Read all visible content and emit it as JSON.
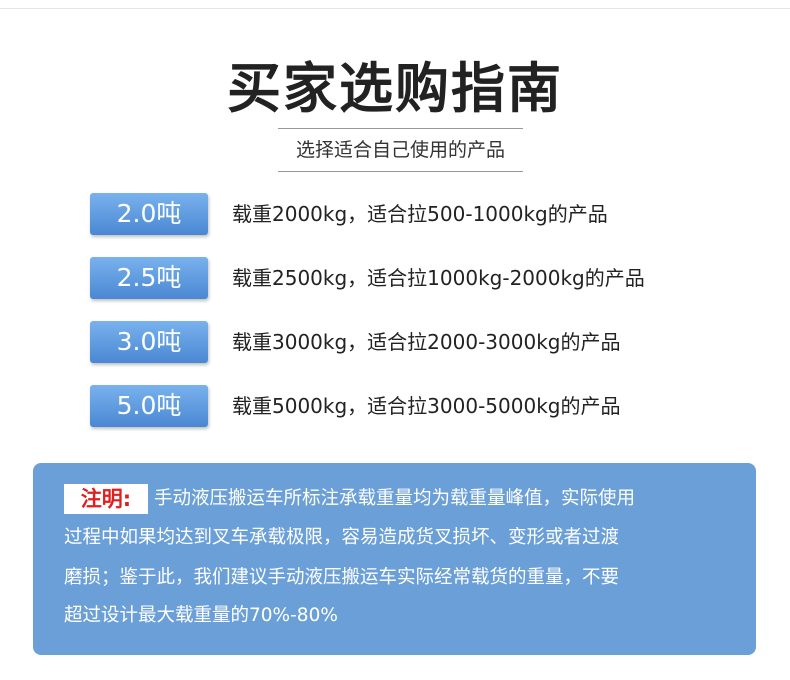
{
  "header": {
    "title": "买家选购指南",
    "subtitle": "选择适合自己使用的产品"
  },
  "options": [
    {
      "badge": "2.0吨",
      "description": "载重2000kg，适合拉500-1000kg的产品"
    },
    {
      "badge": "2.5吨",
      "description": "载重2500kg，适合拉1000kg-2000kg的产品"
    },
    {
      "badge": "3.0吨",
      "description": "载重3000kg，适合拉2000-3000kg的产品"
    },
    {
      "badge": "5.0吨",
      "description": "载重5000kg，适合拉3000-5000kg的产品"
    }
  ],
  "note": {
    "label": "注明:",
    "lines": [
      "手动液压搬运车所标注承载重量均为载重量峰值，实际使用",
      "过程中如果均达到叉车承载极限，容易造成货叉损坏、变形或者过渡",
      "磨损；鉴于此，我们建议手动液压搬运车实际经常载货的重量，不要",
      "超过设计最大载重量的70%-80%"
    ]
  }
}
